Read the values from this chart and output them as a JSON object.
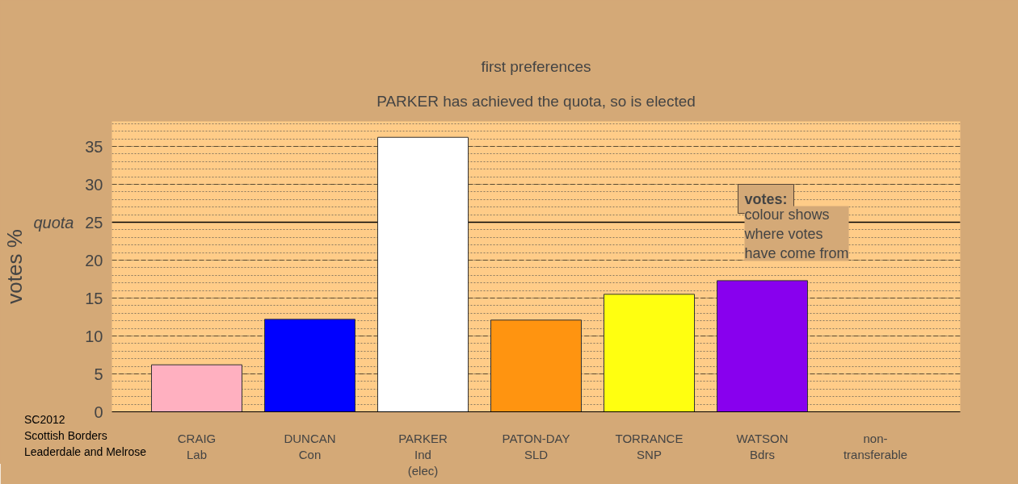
{
  "chart_data": {
    "type": "bar",
    "title": "first preferences",
    "subtitle": "PARKER has achieved the quota, so is elected",
    "ylabel": "votes %",
    "categories": [
      "CRAIG\nLab",
      "DUNCAN\nCon",
      "PARKER\nInd\n(elec)",
      "PATON-DAY\nSLD",
      "TORRANCE\nSNP",
      "WATSON\nBdrs",
      "non-\ntransferable"
    ],
    "values": [
      6.2,
      12.2,
      36.2,
      12.1,
      15.5,
      17.3,
      null
    ],
    "colors": [
      "#ffb0c0",
      "#0000ff",
      "#ffffff",
      "#ff9410",
      "#ffff10",
      "#8800ee",
      "#888888"
    ],
    "ylim": [
      0,
      38.3
    ],
    "yticks": [
      0,
      5,
      10,
      15,
      20,
      25,
      30,
      35
    ],
    "grid": "y",
    "ref_lines": [
      {
        "axis": "y",
        "value": 25,
        "label": "quota",
        "color": "#000000"
      }
    ],
    "annotations": [
      "votes:",
      "colour shows\nwhere votes\nhave come from",
      "SC2012\nScottish Borders\nLeaderdale and Melrose"
    ]
  }
}
